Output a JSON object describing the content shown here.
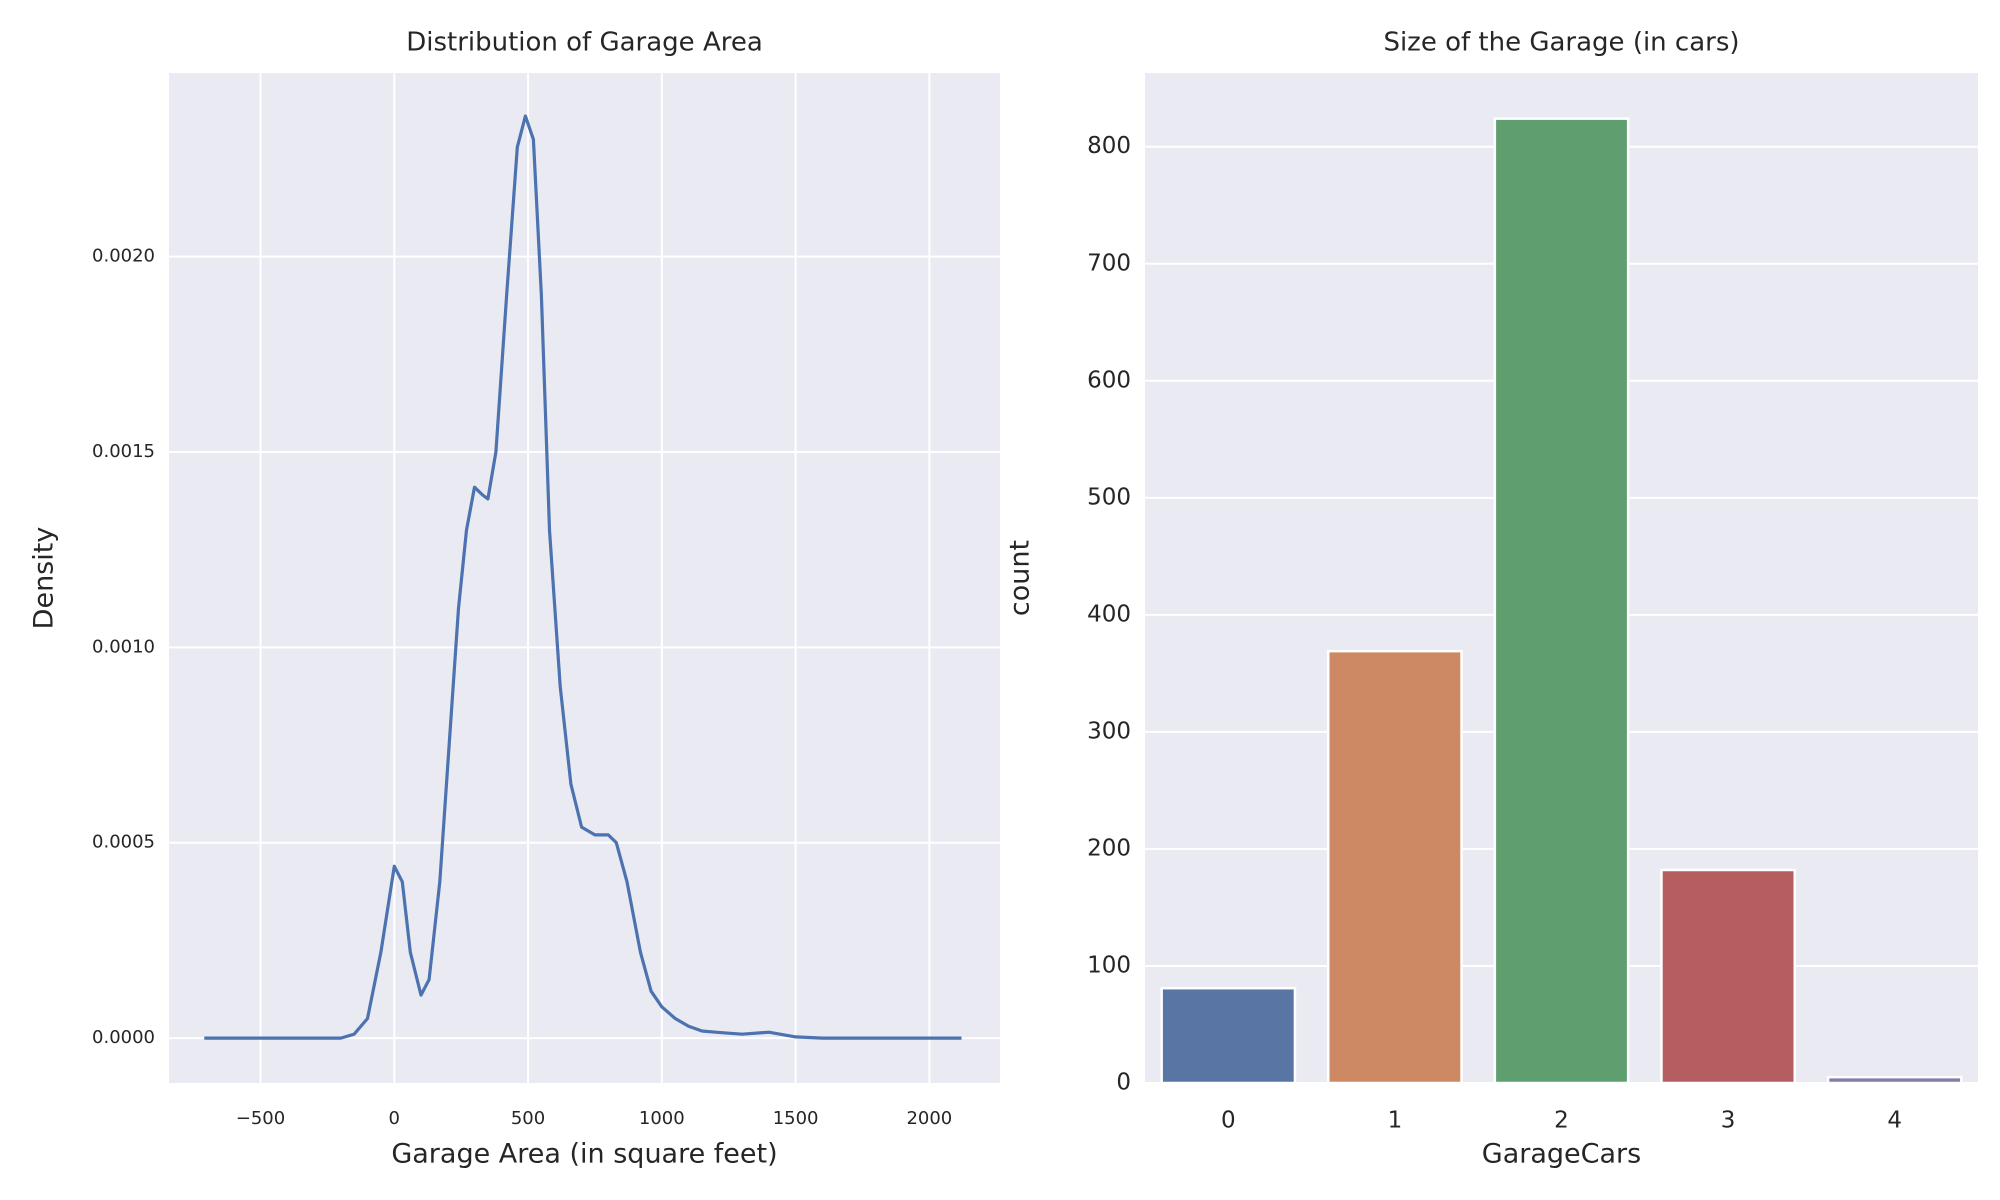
{
  "chart_data": [
    {
      "type": "line",
      "title": "Distribution of Garage Area",
      "x_label": "Garage Area (in square feet)",
      "y_label": "Density",
      "x": [
        -710,
        -200,
        -150,
        -100,
        -50,
        0,
        30,
        60,
        100,
        130,
        170,
        200,
        240,
        270,
        300,
        330,
        350,
        380,
        420,
        460,
        490,
        520,
        550,
        580,
        620,
        660,
        700,
        750,
        800,
        830,
        870,
        920,
        960,
        1000,
        1050,
        1100,
        1150,
        1200,
        1300,
        1400,
        1500,
        1600,
        2120
      ],
      "values": [
        0,
        0,
        1e-05,
        5e-05,
        0.00022,
        0.00044,
        0.0004,
        0.00022,
        0.00011,
        0.00015,
        0.0004,
        0.0007,
        0.0011,
        0.0013,
        0.00141,
        0.00139,
        0.00138,
        0.0015,
        0.0019,
        0.00228,
        0.00236,
        0.0023,
        0.0019,
        0.0013,
        0.0009,
        0.00065,
        0.00054,
        0.00052,
        0.00052,
        0.0005,
        0.0004,
        0.00022,
        0.00012,
        8e-05,
        5e-05,
        3e-05,
        1.8e-05,
        1.5e-05,
        1e-05,
        1.5e-05,
        3e-06,
        0,
        0
      ],
      "color": "#4c72b0",
      "grid": true,
      "xlim": [
        -842,
        2264
      ],
      "ylim": [
        -0.000115,
        0.00247
      ],
      "xticks": [
        {
          "value": -500,
          "label": "−500"
        },
        0,
        500,
        1000,
        1500,
        2000
      ],
      "yticks": [
        {
          "value": 0,
          "label": "0.0000"
        },
        {
          "value": 0.0005,
          "label": "0.0005"
        },
        {
          "value": 0.001,
          "label": "0.0010"
        },
        {
          "value": 0.0015,
          "label": "0.0015"
        },
        {
          "value": 0.002,
          "label": "0.0020"
        }
      ]
    },
    {
      "type": "bar",
      "title": "Size of the Garage (in cars)",
      "x_label": "GarageCars",
      "y_label": "count",
      "categories": [
        "0",
        "1",
        "2",
        "3",
        "4"
      ],
      "values": [
        81,
        369,
        824,
        182,
        5
      ],
      "colors": [
        "#5975a4",
        "#cc8963",
        "#5f9e6e",
        "#b55d60",
        "#857aab"
      ],
      "grid": true,
      "ylim": [
        0,
        863
      ],
      "yticks": [
        0,
        100,
        200,
        300,
        400,
        500,
        600,
        700,
        800
      ]
    }
  ]
}
